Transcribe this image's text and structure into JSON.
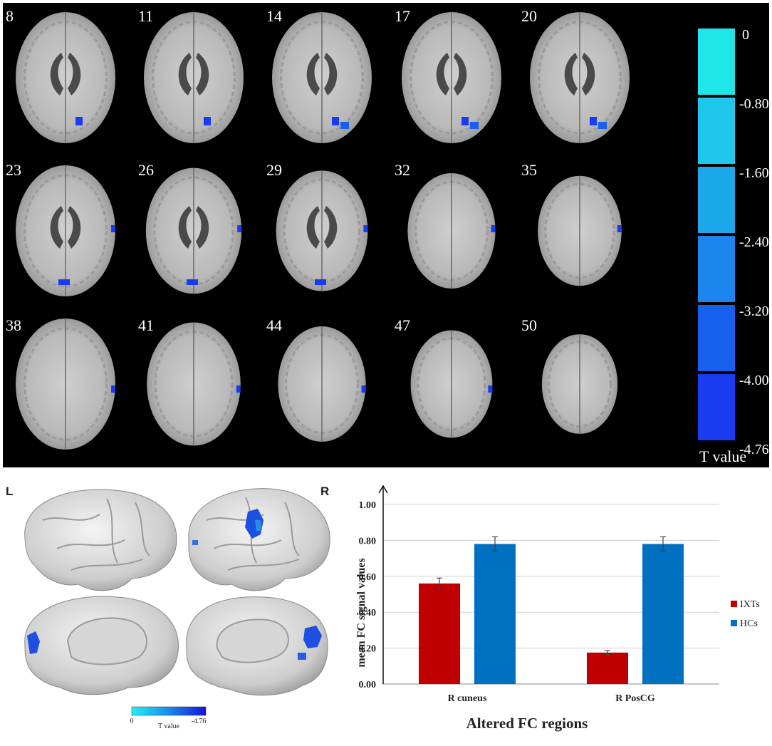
{
  "top_panel": {
    "slice_numbers": [
      "8",
      "11",
      "14",
      "17",
      "20",
      "23",
      "26",
      "29",
      "32",
      "35",
      "38",
      "41",
      "44",
      "47",
      "50"
    ],
    "colorbar_ticks": [
      "0",
      "-0.80",
      "-1.60",
      "-2.40",
      "-3.20",
      "-4.00",
      "-4.76"
    ],
    "colorbar_colors": [
      "#1fe6e8",
      "#1fc7ec",
      "#1ea8ec",
      "#1a86ee",
      "#1760ee",
      "#1a3cf0"
    ],
    "tvalue_label": "T value"
  },
  "surface_panel": {
    "left_label": "L",
    "right_label": "R",
    "scale_min": "0",
    "scale_max": "-4.76",
    "scale_title": "T value"
  },
  "chart_data": {
    "type": "bar",
    "categories": [
      "R cuneus",
      "R PosCG"
    ],
    "series": [
      {
        "name": "IXTs",
        "values": [
          0.56,
          0.175
        ],
        "errors": [
          0.03,
          0.01
        ],
        "color": "#c00000"
      },
      {
        "name": "HCs",
        "values": [
          0.78,
          0.78
        ],
        "errors": [
          0.04,
          0.04
        ],
        "color": "#0070c0"
      }
    ],
    "ylim": [
      0,
      1.0
    ],
    "yticks": [
      "0.00",
      "0.20",
      "0.40",
      "0.60",
      "0.80",
      "1.00"
    ],
    "ylabel": "mean FC signal values",
    "xlabel": "Altered FC regions",
    "grid": true,
    "legend": "right"
  }
}
